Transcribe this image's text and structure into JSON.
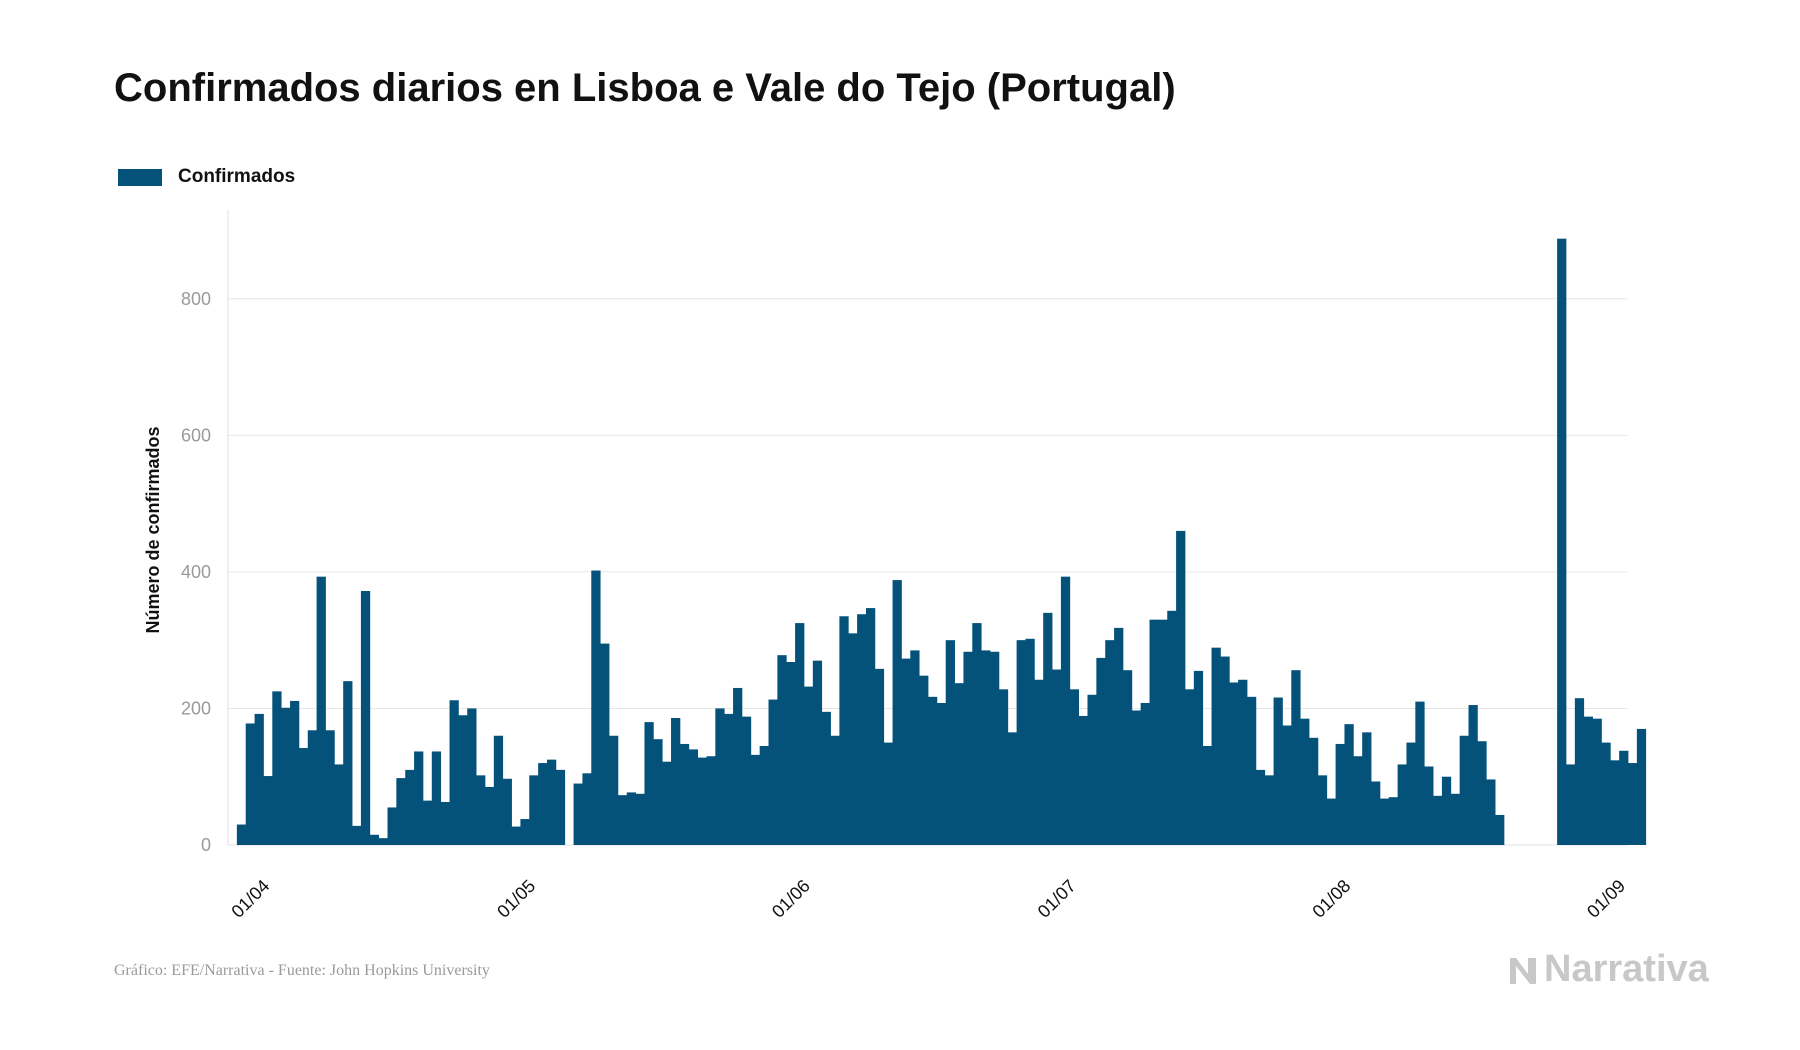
{
  "source_text": "Gráfico: EFE/Narrativa - Fuente: John Hopkins University",
  "brand_text": "Narrativa",
  "colors": {
    "bar": "#04527a",
    "grid": "#e6e6e6",
    "axis": "#e0e0e0"
  },
  "chart_data": {
    "type": "bar",
    "title": "Confirmados diarios en Lisboa e Vale do Tejo (Portugal)",
    "xlabel": "",
    "ylabel": "Número de confirmados",
    "ylim": [
      0,
      930
    ],
    "yticks": [
      0,
      200,
      400,
      600,
      800
    ],
    "grid": true,
    "legend_position": "top-left",
    "x_start": "2020-03-29",
    "x_end": "2020-09-03",
    "xtick_labels": [
      {
        "date": "2020-04-01",
        "label": "01/04"
      },
      {
        "date": "2020-05-01",
        "label": "01/05"
      },
      {
        "date": "2020-06-01",
        "label": "01/06"
      },
      {
        "date": "2020-07-01",
        "label": "01/07"
      },
      {
        "date": "2020-08-01",
        "label": "01/08"
      },
      {
        "date": "2020-09-01",
        "label": "01/09"
      }
    ],
    "series": [
      {
        "name": "Confirmados",
        "start_date": "2020-03-30",
        "values": [
          30,
          178,
          192,
          101,
          225,
          201,
          211,
          142,
          168,
          393,
          168,
          118,
          240,
          28,
          372,
          15,
          10,
          55,
          98,
          110,
          137,
          65,
          137,
          63,
          212,
          190,
          200,
          102,
          85,
          160,
          97,
          27,
          38,
          102,
          120,
          125,
          110,
          null,
          90,
          105,
          402,
          295,
          160,
          73,
          77,
          75,
          180,
          155,
          122,
          186,
          148,
          140,
          128,
          130,
          200,
          192,
          230,
          188,
          132,
          145,
          213,
          278,
          268,
          325,
          232,
          270,
          195,
          160,
          335,
          310,
          338,
          347,
          258,
          150,
          388,
          273,
          285,
          248,
          217,
          208,
          300,
          237,
          283,
          325,
          285,
          283,
          228,
          165,
          300,
          302,
          242,
          340,
          257,
          393,
          228,
          189,
          220,
          274,
          300,
          318,
          256,
          197,
          208,
          330,
          330,
          343,
          460,
          228,
          255,
          145,
          289,
          276,
          238,
          242,
          217,
          110,
          102,
          216,
          175,
          256,
          185,
          157,
          102,
          68,
          148,
          177,
          130,
          165,
          93,
          68,
          70,
          118,
          150,
          210,
          115,
          72,
          100,
          75,
          160,
          205,
          152,
          96,
          44,
          null,
          null,
          null,
          null,
          null,
          null,
          888,
          118,
          215,
          188,
          185,
          150,
          124,
          138,
          120,
          170
        ]
      }
    ]
  }
}
